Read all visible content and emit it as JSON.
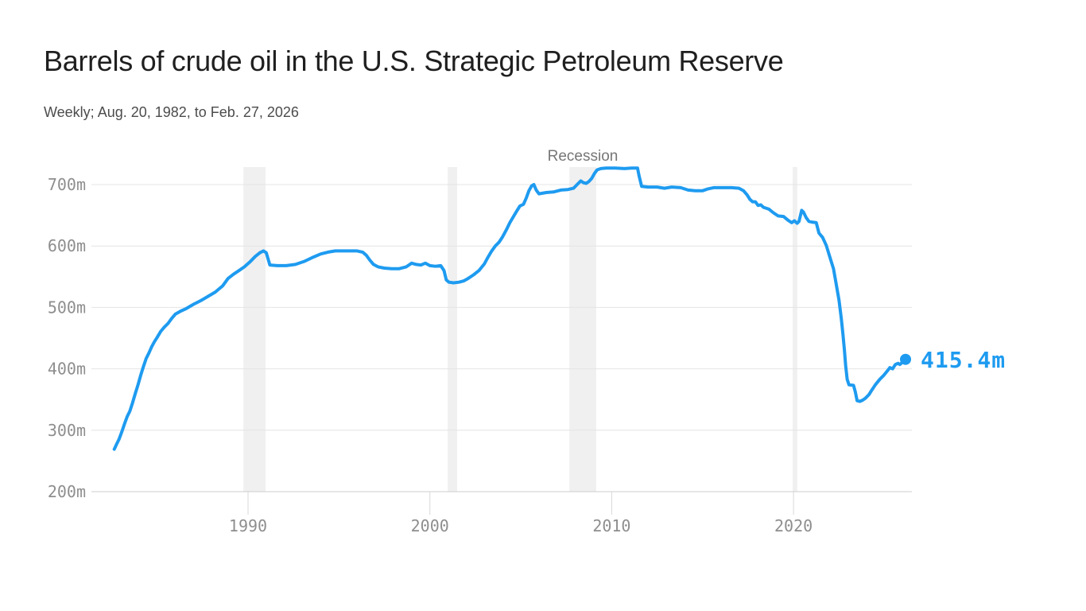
{
  "header": {
    "title": "Barrels of crude oil in the U.S. Strategic Petroleum Reserve",
    "subtitle": "Weekly; Aug. 20, 1982, to Feb. 27, 2026"
  },
  "chart_data": {
    "type": "line",
    "title": "Barrels of crude oil in the U.S. Strategic Petroleum Reserve",
    "subtitle": "Weekly; Aug. 20, 1982, to Feb. 27, 2026",
    "unit": "million barrels",
    "xlabel": "",
    "ylabel": "",
    "x_range": [
      1982.64,
      2026.16
    ],
    "ylim": [
      200,
      730
    ],
    "grid": true,
    "legend": false,
    "y_ticks": [
      {
        "value": 700,
        "label": "700m"
      },
      {
        "value": 600,
        "label": "600m"
      },
      {
        "value": 500,
        "label": "500m"
      },
      {
        "value": 400,
        "label": "400m"
      },
      {
        "value": 300,
        "label": "300m"
      },
      {
        "value": 200,
        "label": "200m"
      }
    ],
    "x_ticks": [
      {
        "value": 1990,
        "label": "1990"
      },
      {
        "value": 2000,
        "label": "2000"
      },
      {
        "value": 2010,
        "label": "2010"
      },
      {
        "value": 2020,
        "label": "2020"
      }
    ],
    "recession_label": "Recession",
    "recession_bands": [
      [
        1989.74,
        1990.96
      ],
      [
        2000.98,
        2001.5
      ],
      [
        2007.67,
        2009.15
      ],
      [
        2019.95,
        2020.21
      ]
    ],
    "end_label": "415.4m",
    "end_value": 415.4,
    "colors": {
      "line": "#1e9bf0",
      "band": "#f0f0f0",
      "grid": "#e4e4e4",
      "axis": "#cdcdcd",
      "tick": "#d8d8d8",
      "tick_text": "#8e8e8e",
      "annotation": "#767676",
      "title_text": "#1f1f1f",
      "subtitle_text": "#4c4c4c"
    },
    "series": [
      {
        "name": "SPR crude oil stocks",
        "points": [
          [
            1982.64,
            269
          ],
          [
            1982.75,
            276
          ],
          [
            1982.9,
            285
          ],
          [
            1983.05,
            297
          ],
          [
            1983.2,
            310
          ],
          [
            1983.35,
            322
          ],
          [
            1983.5,
            331
          ],
          [
            1983.65,
            345
          ],
          [
            1983.8,
            360
          ],
          [
            1983.95,
            374
          ],
          [
            1984.1,
            390
          ],
          [
            1984.25,
            404
          ],
          [
            1984.4,
            417
          ],
          [
            1984.55,
            426
          ],
          [
            1984.7,
            436
          ],
          [
            1984.85,
            444
          ],
          [
            1985.0,
            451
          ],
          [
            1985.2,
            461
          ],
          [
            1985.4,
            468
          ],
          [
            1985.6,
            474
          ],
          [
            1985.8,
            482
          ],
          [
            1986.0,
            489
          ],
          [
            1986.3,
            494
          ],
          [
            1986.6,
            498
          ],
          [
            1987.0,
            505
          ],
          [
            1987.4,
            511
          ],
          [
            1987.8,
            518
          ],
          [
            1988.2,
            525
          ],
          [
            1988.6,
            535
          ],
          [
            1988.9,
            547
          ],
          [
            1989.2,
            554
          ],
          [
            1989.5,
            560
          ],
          [
            1989.8,
            566
          ],
          [
            1990.1,
            574
          ],
          [
            1990.4,
            583
          ],
          [
            1990.65,
            589
          ],
          [
            1990.85,
            592
          ],
          [
            1991.0,
            589
          ],
          [
            1991.1,
            579
          ],
          [
            1991.2,
            569
          ],
          [
            1991.6,
            568
          ],
          [
            1992.1,
            568
          ],
          [
            1992.6,
            570
          ],
          [
            1993.1,
            575
          ],
          [
            1993.6,
            582
          ],
          [
            1994.0,
            587
          ],
          [
            1994.4,
            590
          ],
          [
            1994.8,
            592
          ],
          [
            1995.4,
            592
          ],
          [
            1996.0,
            592
          ],
          [
            1996.3,
            590
          ],
          [
            1996.5,
            585
          ],
          [
            1996.7,
            577
          ],
          [
            1996.9,
            570
          ],
          [
            1997.15,
            566
          ],
          [
            1997.5,
            564
          ],
          [
            1997.9,
            563
          ],
          [
            1998.3,
            563
          ],
          [
            1998.7,
            566
          ],
          [
            1999.0,
            572
          ],
          [
            1999.25,
            570
          ],
          [
            1999.5,
            569
          ],
          [
            1999.75,
            572
          ],
          [
            2000.0,
            568
          ],
          [
            2000.3,
            567
          ],
          [
            2000.6,
            568
          ],
          [
            2000.78,
            560
          ],
          [
            2000.9,
            545
          ],
          [
            2001.05,
            541
          ],
          [
            2001.3,
            540
          ],
          [
            2001.6,
            541
          ],
          [
            2001.85,
            543
          ],
          [
            2002.1,
            547
          ],
          [
            2002.4,
            553
          ],
          [
            2002.7,
            560
          ],
          [
            2003.0,
            571
          ],
          [
            2003.2,
            582
          ],
          [
            2003.4,
            592
          ],
          [
            2003.6,
            600
          ],
          [
            2003.8,
            606
          ],
          [
            2004.0,
            615
          ],
          [
            2004.2,
            626
          ],
          [
            2004.4,
            638
          ],
          [
            2004.6,
            648
          ],
          [
            2004.8,
            658
          ],
          [
            2004.95,
            665
          ],
          [
            2005.15,
            668
          ],
          [
            2005.3,
            678
          ],
          [
            2005.45,
            690
          ],
          [
            2005.6,
            698
          ],
          [
            2005.72,
            700
          ],
          [
            2005.85,
            691
          ],
          [
            2006.0,
            685
          ],
          [
            2006.4,
            687
          ],
          [
            2006.8,
            688
          ],
          [
            2007.2,
            691
          ],
          [
            2007.6,
            692
          ],
          [
            2007.9,
            694
          ],
          [
            2008.1,
            700
          ],
          [
            2008.3,
            706
          ],
          [
            2008.45,
            703
          ],
          [
            2008.6,
            702
          ],
          [
            2008.75,
            705
          ],
          [
            2008.9,
            710
          ],
          [
            2009.05,
            718
          ],
          [
            2009.2,
            724
          ],
          [
            2009.4,
            726
          ],
          [
            2009.7,
            727
          ],
          [
            2010.2,
            727
          ],
          [
            2010.7,
            726
          ],
          [
            2011.1,
            727
          ],
          [
            2011.42,
            727
          ],
          [
            2011.5,
            715
          ],
          [
            2011.65,
            697
          ],
          [
            2012.0,
            696
          ],
          [
            2012.5,
            696
          ],
          [
            2012.9,
            694
          ],
          [
            2013.3,
            696
          ],
          [
            2013.8,
            695
          ],
          [
            2014.2,
            691
          ],
          [
            2014.6,
            690
          ],
          [
            2015.0,
            690
          ],
          [
            2015.3,
            693
          ],
          [
            2015.6,
            695
          ],
          [
            2016.1,
            695
          ],
          [
            2016.6,
            695
          ],
          [
            2017.0,
            694
          ],
          [
            2017.25,
            690
          ],
          [
            2017.45,
            683
          ],
          [
            2017.6,
            676
          ],
          [
            2017.75,
            672
          ],
          [
            2017.9,
            672
          ],
          [
            2018.05,
            666
          ],
          [
            2018.2,
            667
          ],
          [
            2018.35,
            663
          ],
          [
            2018.65,
            660
          ],
          [
            2018.9,
            654
          ],
          [
            2019.15,
            649
          ],
          [
            2019.45,
            648
          ],
          [
            2019.7,
            642
          ],
          [
            2019.9,
            638
          ],
          [
            2020.05,
            641
          ],
          [
            2020.2,
            637
          ],
          [
            2020.3,
            640
          ],
          [
            2020.45,
            658
          ],
          [
            2020.55,
            655
          ],
          [
            2020.7,
            646
          ],
          [
            2020.85,
            640
          ],
          [
            2021.0,
            639
          ],
          [
            2021.25,
            638
          ],
          [
            2021.4,
            621
          ],
          [
            2021.6,
            614
          ],
          [
            2021.8,
            601
          ],
          [
            2022.0,
            582
          ],
          [
            2022.2,
            563
          ],
          [
            2022.35,
            538
          ],
          [
            2022.5,
            512
          ],
          [
            2022.63,
            482
          ],
          [
            2022.72,
            456
          ],
          [
            2022.8,
            431
          ],
          [
            2022.87,
            405
          ],
          [
            2022.95,
            383
          ],
          [
            2023.05,
            374
          ],
          [
            2023.3,
            373
          ],
          [
            2023.4,
            362
          ],
          [
            2023.5,
            348
          ],
          [
            2023.65,
            347
          ],
          [
            2023.8,
            349
          ],
          [
            2023.95,
            352
          ],
          [
            2024.15,
            358
          ],
          [
            2024.3,
            365
          ],
          [
            2024.5,
            374
          ],
          [
            2024.75,
            383
          ],
          [
            2024.95,
            389
          ],
          [
            2025.2,
            398
          ],
          [
            2025.3,
            402
          ],
          [
            2025.45,
            400
          ],
          [
            2025.6,
            407
          ],
          [
            2025.75,
            409
          ],
          [
            2025.85,
            407
          ],
          [
            2026.0,
            411
          ],
          [
            2026.16,
            415.4
          ]
        ]
      }
    ]
  }
}
